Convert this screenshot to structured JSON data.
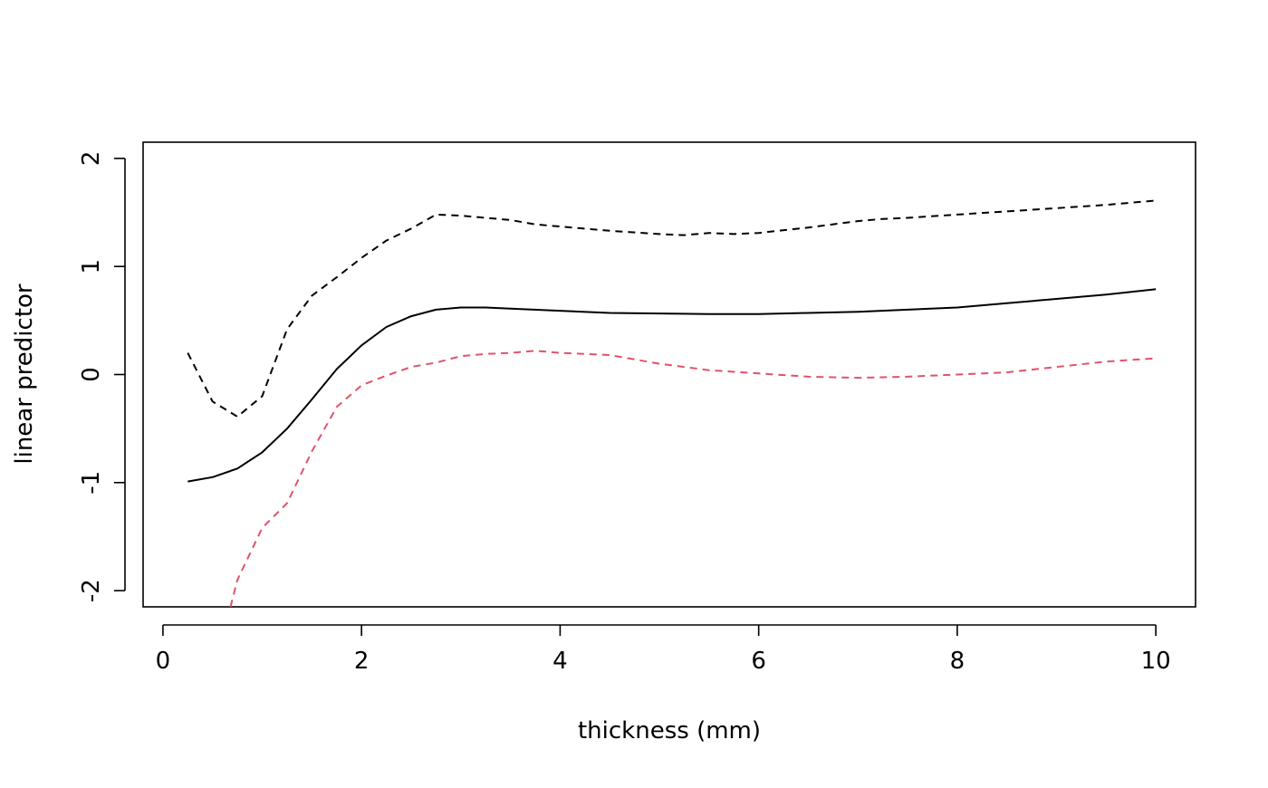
{
  "chart_data": {
    "type": "line",
    "title": "",
    "xlabel": "thickness (mm)",
    "ylabel": "linear predictor",
    "xlim": [
      -0.2,
      10.4
    ],
    "ylim": [
      -2.15,
      2.15
    ],
    "x_ticks": [
      0,
      2,
      4,
      6,
      8,
      10
    ],
    "x_tick_labels": [
      "0",
      "2",
      "4",
      "6",
      "8",
      "10"
    ],
    "y_ticks": [
      -2,
      -1,
      0,
      1,
      2
    ],
    "y_tick_labels": [
      "-2",
      "-1",
      "0",
      "1",
      "2"
    ],
    "grid": false,
    "legend": "none",
    "series": [
      {
        "color": "#000000",
        "dash": "solid",
        "x": [
          0.25,
          0.5,
          0.75,
          1.0,
          1.25,
          1.5,
          1.75,
          2.0,
          2.25,
          2.5,
          2.75,
          3.0,
          3.25,
          3.5,
          4.0,
          4.5,
          5.0,
          5.5,
          6.0,
          6.5,
          7.0,
          7.5,
          8.0,
          8.5,
          9.0,
          9.5,
          10.0
        ],
        "y": [
          -0.99,
          -0.95,
          -0.87,
          -0.72,
          -0.5,
          -0.23,
          0.05,
          0.27,
          0.44,
          0.54,
          0.6,
          0.62,
          0.62,
          0.61,
          0.59,
          0.57,
          0.565,
          0.56,
          0.56,
          0.57,
          0.58,
          0.6,
          0.62,
          0.66,
          0.7,
          0.74,
          0.79
        ]
      },
      {
        "color": "#000000",
        "dash": "dashed",
        "x": [
          0.25,
          0.5,
          0.75,
          1.0,
          1.25,
          1.5,
          1.75,
          2.0,
          2.25,
          2.5,
          2.75,
          3.0,
          3.25,
          3.5,
          3.75,
          4.0,
          4.5,
          5.0,
          5.25,
          5.5,
          5.75,
          6.0,
          6.5,
          7.0,
          7.25,
          7.5,
          8.0,
          8.5,
          9.0,
          9.5,
          10.0
        ],
        "y": [
          0.2,
          -0.25,
          -0.39,
          -0.2,
          0.42,
          0.73,
          0.9,
          1.08,
          1.24,
          1.35,
          1.48,
          1.47,
          1.45,
          1.43,
          1.39,
          1.37,
          1.33,
          1.3,
          1.29,
          1.31,
          1.3,
          1.31,
          1.36,
          1.42,
          1.44,
          1.45,
          1.48,
          1.51,
          1.54,
          1.57,
          1.61
        ]
      },
      {
        "color": "#DF536B",
        "dash": "dashed",
        "x": [
          0.68,
          0.75,
          1.0,
          1.25,
          1.5,
          1.75,
          2.0,
          2.25,
          2.5,
          2.75,
          3.0,
          3.25,
          3.5,
          3.75,
          4.0,
          4.5,
          5.0,
          5.5,
          6.0,
          6.5,
          7.0,
          7.5,
          8.0,
          8.5,
          9.0,
          9.5,
          10.0
        ],
        "y": [
          -2.15,
          -1.9,
          -1.42,
          -1.19,
          -0.71,
          -0.3,
          -0.1,
          -0.01,
          0.07,
          0.11,
          0.17,
          0.19,
          0.2,
          0.22,
          0.2,
          0.18,
          0.1,
          0.04,
          0.01,
          -0.02,
          -0.03,
          -0.02,
          0.0,
          0.02,
          0.07,
          0.12,
          0.15
        ]
      }
    ]
  }
}
